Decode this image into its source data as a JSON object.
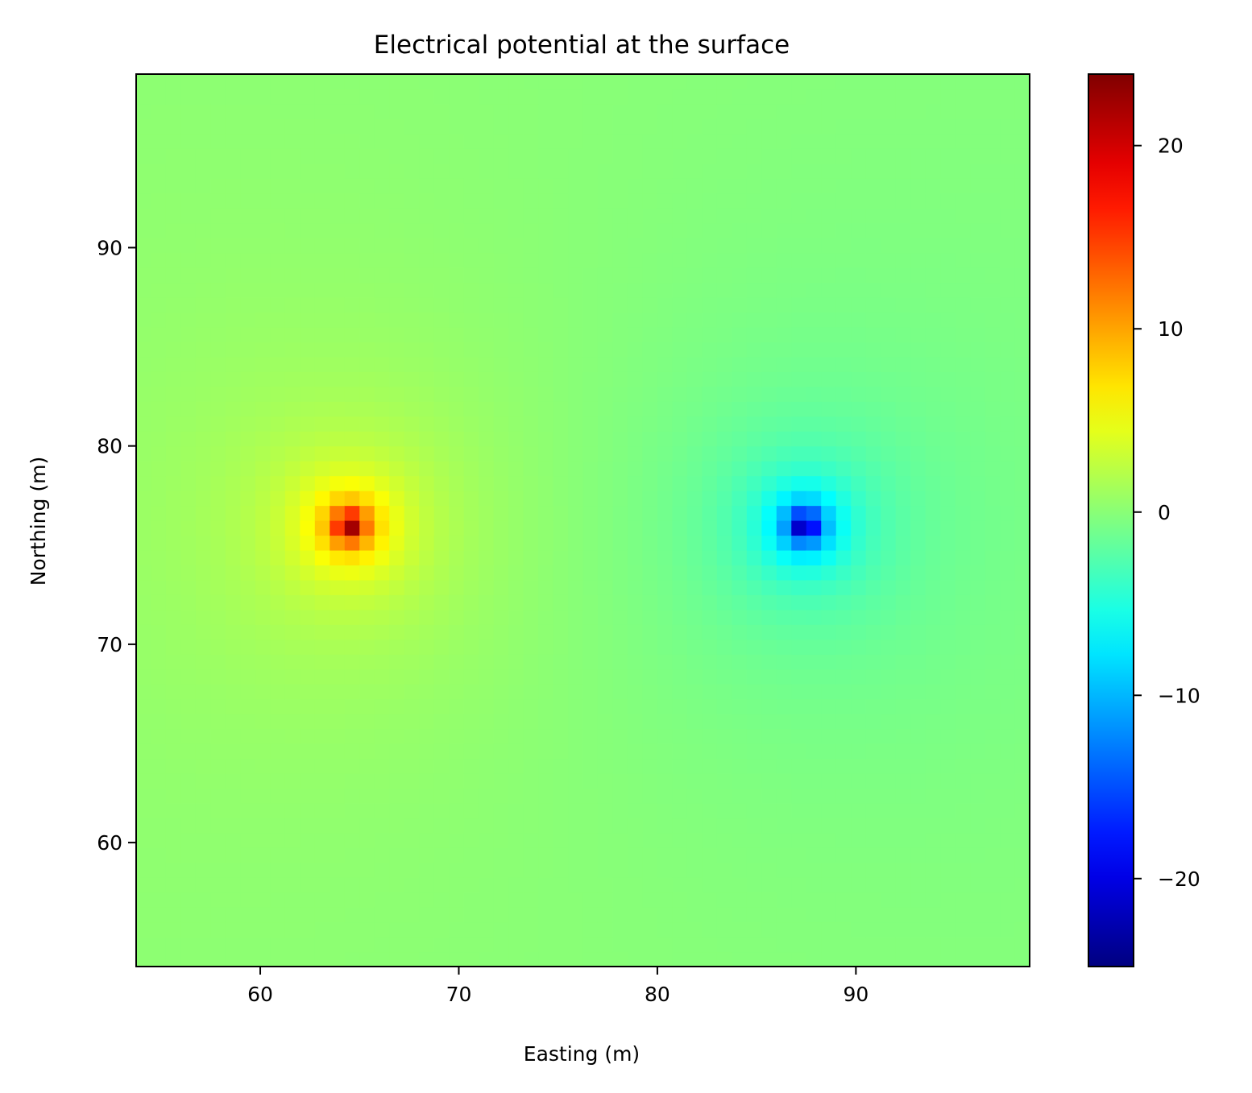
{
  "chart_data": {
    "type": "heatmap",
    "title": "Electrical potential at the surface",
    "xlabel": "Easting (m)",
    "ylabel": "Northing (m)",
    "xlim": [
      53.75,
      98.75
    ],
    "ylim": [
      53.75,
      98.75
    ],
    "xticks": [
      60,
      70,
      80,
      90
    ],
    "yticks": [
      60,
      70,
      80,
      90
    ],
    "grid": false,
    "cell_size": 0.75,
    "colormap": "jet",
    "colorbar": {
      "range": [
        -24.8,
        23.9
      ],
      "ticks": [
        {
          "value": 20,
          "label": "20"
        },
        {
          "value": 10,
          "label": "10"
        },
        {
          "value": 0,
          "label": "0"
        },
        {
          "value": -10,
          "label": "−10"
        },
        {
          "value": -20,
          "label": "−20"
        }
      ]
    },
    "sources": [
      {
        "name": "positive",
        "x": 64.5,
        "y": 76.0,
        "peak_value": 23.9
      },
      {
        "name": "negative",
        "x": 87.4,
        "y": 76.0,
        "peak_value": -24.8
      }
    ],
    "colors": {
      "background_field": "#8aff6c",
      "max": "#800000",
      "min": "#00007f"
    }
  }
}
